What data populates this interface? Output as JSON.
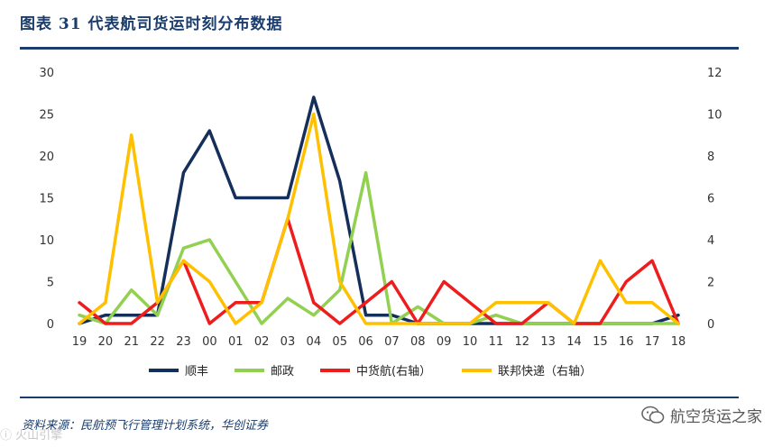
{
  "header": {
    "title": "图表  31    代表航司货运时刻分布数据"
  },
  "footer": {
    "source": "资料来源：民航预飞行管理计划系统，华创证券",
    "watermark_left": "ⓘ 火山引擎",
    "watermark_right": "航空货运之家",
    "watermark_icon": "wechat-icon"
  },
  "chart_data": {
    "type": "line",
    "categories": [
      "19",
      "20",
      "21",
      "22",
      "23",
      "00",
      "01",
      "02",
      "03",
      "04",
      "05",
      "06",
      "07",
      "08",
      "09",
      "10",
      "11",
      "12",
      "13",
      "14",
      "15",
      "16",
      "17",
      "18"
    ],
    "y_left": {
      "ticks": [
        "0",
        "5",
        "10",
        "15",
        "20",
        "25",
        "30"
      ],
      "lim": [
        0,
        30
      ]
    },
    "y_right": {
      "ticks": [
        "0",
        "2",
        "4",
        "6",
        "8",
        "10",
        "12"
      ],
      "lim": [
        0,
        12
      ]
    },
    "grid": false,
    "legend_position": "bottom",
    "series": [
      {
        "name": "顺丰",
        "axis": "left",
        "color": "#14305a",
        "values": [
          0,
          1,
          1,
          1,
          18,
          23,
          15,
          15,
          15,
          27,
          17,
          1,
          1,
          0,
          0,
          0,
          0,
          0,
          0,
          0,
          0,
          0,
          0,
          1
        ]
      },
      {
        "name": "邮政",
        "axis": "left",
        "color": "#92d050",
        "values": [
          1,
          0,
          4,
          1,
          9,
          10,
          5,
          0,
          3,
          1,
          4,
          18,
          0,
          2,
          0,
          0,
          1,
          0,
          0,
          0,
          0,
          0,
          0,
          0
        ]
      },
      {
        "name": "中货航(右轴）",
        "axis": "right",
        "color": "#ee1c1c",
        "values": [
          1,
          0,
          0,
          1,
          3,
          0,
          1,
          1,
          5,
          1,
          0,
          1,
          2,
          0,
          2,
          1,
          0,
          0,
          1,
          0,
          0,
          2,
          3,
          0
        ]
      },
      {
        "name": "联邦快递（右轴）",
        "axis": "right",
        "color": "#ffc000",
        "values": [
          0,
          1,
          9,
          1,
          3,
          2,
          0,
          1,
          5,
          10,
          2,
          0,
          0,
          0,
          0,
          0,
          1,
          1,
          1,
          0,
          3,
          1,
          1,
          0
        ]
      }
    ]
  }
}
